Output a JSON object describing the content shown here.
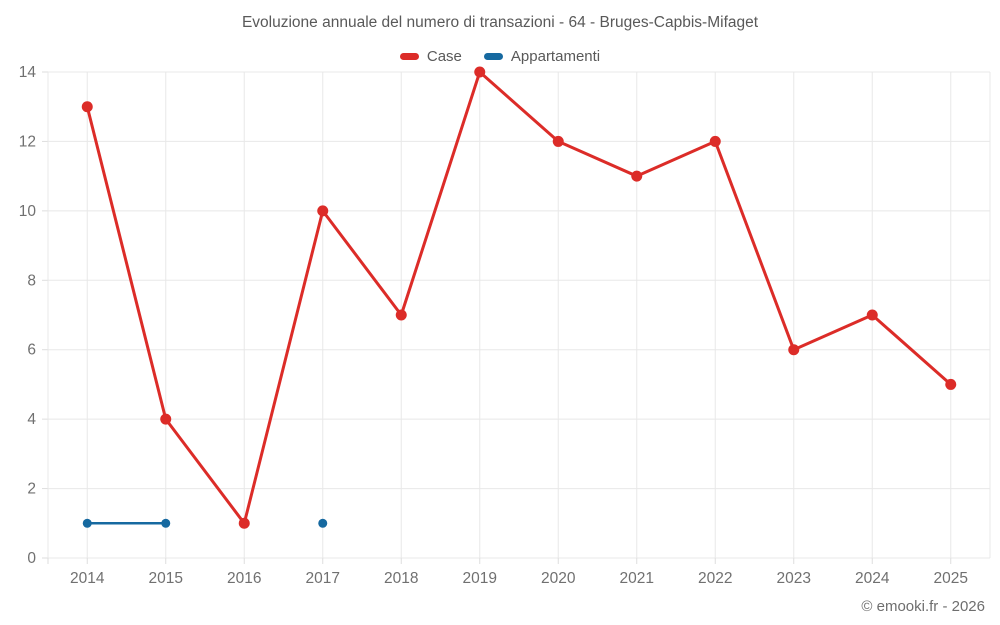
{
  "chart_data": {
    "type": "line",
    "title": "Evoluzione annuale del numero di transazioni - 64 - Bruges-Capbis-Mifaget",
    "categories": [
      "2014",
      "2015",
      "2016",
      "2017",
      "2018",
      "2019",
      "2020",
      "2021",
      "2022",
      "2023",
      "2024",
      "2025"
    ],
    "series": [
      {
        "name": "Case",
        "color": "#dc2c28",
        "marker_radius": 5.5,
        "line_width": 3,
        "values": [
          13,
          4,
          1,
          10,
          7,
          14,
          12,
          11,
          12,
          6,
          7,
          5
        ]
      },
      {
        "name": "Appartamenti",
        "color": "#1669a0",
        "marker_radius": 4.5,
        "line_width": 2.5,
        "values": [
          1,
          1,
          null,
          1,
          null,
          null,
          null,
          null,
          null,
          null,
          null,
          null
        ]
      }
    ],
    "xlabel": "",
    "ylabel": "",
    "ylim": [
      0,
      14
    ],
    "yticks": [
      0,
      2,
      4,
      6,
      8,
      10,
      12,
      14
    ],
    "grid": true,
    "grid_color": "#e8e8e8",
    "tick_color": "#dedede",
    "legend_position": "top-center"
  },
  "footer": {
    "copyright": "© emooki.fr - 2026"
  }
}
